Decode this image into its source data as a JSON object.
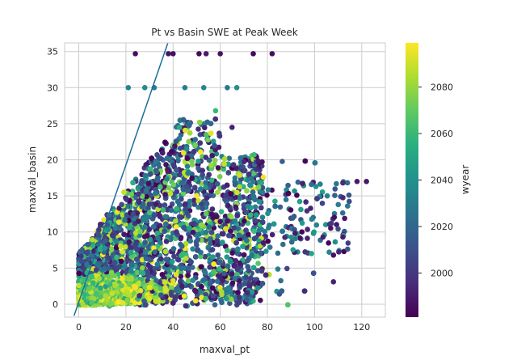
{
  "chart_data": {
    "type": "scatter",
    "title": "Pt vs Basin SWE at Peak Week",
    "xlabel": "maxval_pt",
    "ylabel": "maxval_basin",
    "xlim": [
      -6,
      130
    ],
    "ylim": [
      -1.8,
      36.2
    ],
    "xticks": [
      0,
      20,
      40,
      60,
      80,
      100,
      120
    ],
    "yticks": [
      0,
      5,
      10,
      15,
      20,
      25,
      30,
      35
    ],
    "grid": true,
    "reference_line": {
      "slope": 0.95,
      "intercept": 0.3,
      "color": "#1f77b4"
    },
    "colorbar": {
      "label": "wyear",
      "min": 1981,
      "max": 2099,
      "ticks": [
        2000,
        2020,
        2040,
        2060,
        2080
      ],
      "colormap": "viridis"
    },
    "highlight_points": [
      {
        "x": 24,
        "y": 34.7,
        "wyear": 1985
      },
      {
        "x": 38,
        "y": 34.7,
        "wyear": 1988
      },
      {
        "x": 40,
        "y": 34.7,
        "wyear": 1986
      },
      {
        "x": 51,
        "y": 34.7,
        "wyear": 1984
      },
      {
        "x": 54,
        "y": 34.7,
        "wyear": 1990
      },
      {
        "x": 60,
        "y": 34.7,
        "wyear": 1987
      },
      {
        "x": 74,
        "y": 34.7,
        "wyear": 1983
      },
      {
        "x": 82,
        "y": 34.7,
        "wyear": 1985
      },
      {
        "x": 21,
        "y": 30.0,
        "wyear": 2035
      },
      {
        "x": 28,
        "y": 30.0,
        "wyear": 2038
      },
      {
        "x": 32,
        "y": 30.0,
        "wyear": 2030
      },
      {
        "x": 45,
        "y": 30.0,
        "wyear": 2032
      },
      {
        "x": 53,
        "y": 30.0,
        "wyear": 2036
      },
      {
        "x": 63,
        "y": 30.0,
        "wyear": 2028
      },
      {
        "x": 67,
        "y": 30.0,
        "wyear": 2040
      },
      {
        "x": 118,
        "y": 17.0,
        "wyear": 1990
      },
      {
        "x": 112,
        "y": 16.8,
        "wyear": 1995
      },
      {
        "x": 122,
        "y": 17.0,
        "wyear": 1988
      },
      {
        "x": 108,
        "y": 3.1,
        "wyear": 1992
      },
      {
        "x": 108,
        "y": 6.8,
        "wyear": 1986
      },
      {
        "x": 112,
        "y": 9.3,
        "wyear": 1990
      },
      {
        "x": 114,
        "y": 13.6,
        "wyear": 2030
      },
      {
        "x": 65,
        "y": 24.5,
        "wyear": 1992
      },
      {
        "x": 58,
        "y": 26.8,
        "wyear": 2060
      }
    ]
  }
}
